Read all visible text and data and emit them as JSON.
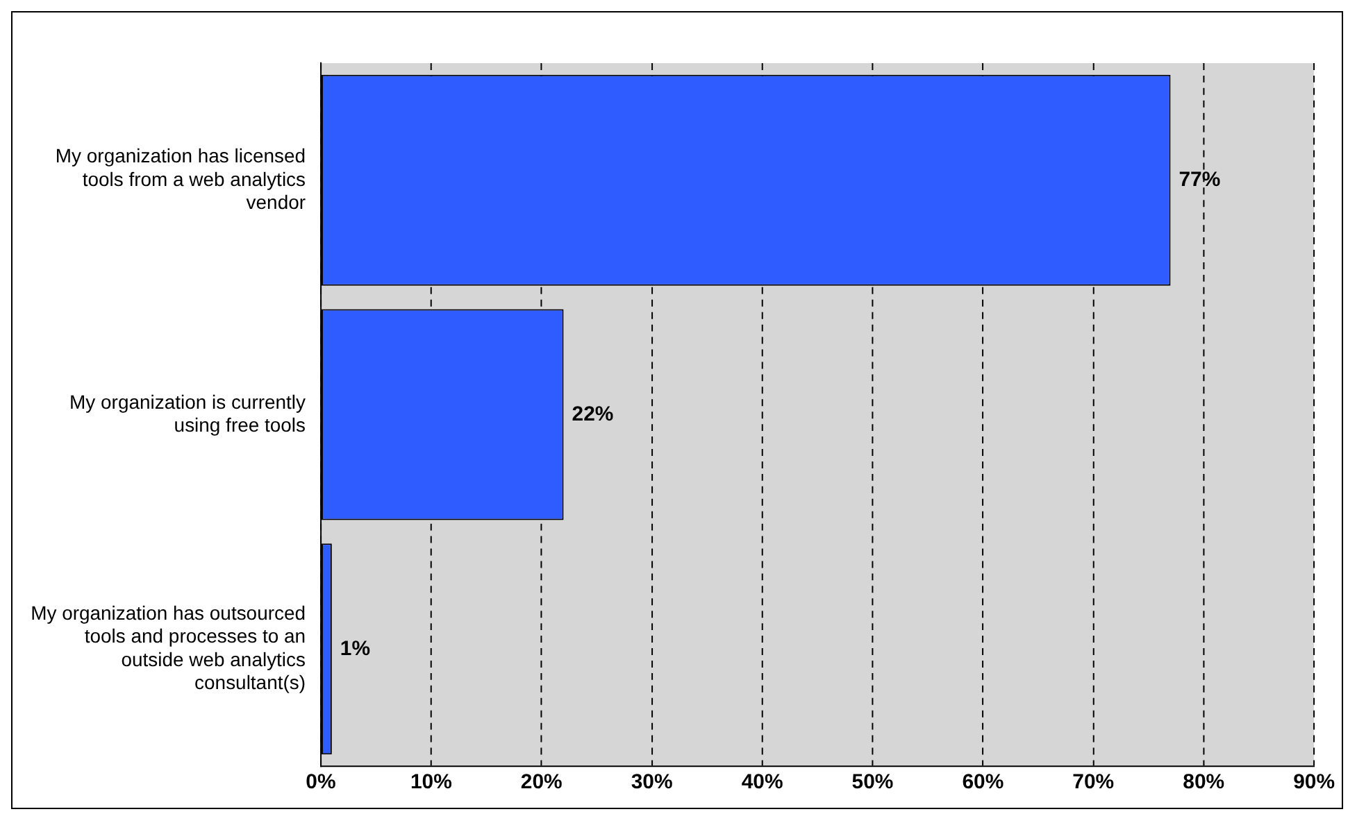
{
  "chart_data": {
    "type": "bar",
    "orientation": "horizontal",
    "categories": [
      "My organization has licensed tools from a web analytics vendor",
      "My organization is currently using free tools",
      "My organization has outsourced tools and processes to an outside web analytics consultant(s)"
    ],
    "values": [
      77,
      22,
      1
    ],
    "value_labels": [
      "77%",
      "22%",
      "1%"
    ],
    "color": "#2f5cff",
    "xlim": [
      0,
      90
    ],
    "xticks": [
      {
        "value": 0,
        "label": "0%"
      },
      {
        "value": 10,
        "label": "10%"
      },
      {
        "value": 20,
        "label": "20%"
      },
      {
        "value": 30,
        "label": "30%"
      },
      {
        "value": 40,
        "label": "40%"
      },
      {
        "value": 50,
        "label": "50%"
      },
      {
        "value": 60,
        "label": "60%"
      },
      {
        "value": 70,
        "label": "70%"
      },
      {
        "value": 80,
        "label": "80%"
      },
      {
        "value": 90,
        "label": "90%"
      }
    ],
    "grid": "x",
    "legend": false
  }
}
